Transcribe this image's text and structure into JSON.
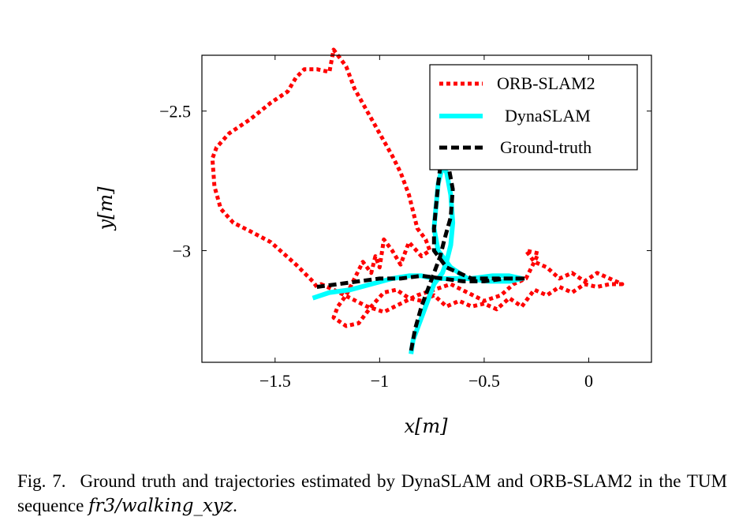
{
  "chart_data": {
    "type": "line",
    "xlabel": "x[m]",
    "ylabel": "y[m]",
    "xlim": [
      -1.85,
      0.3
    ],
    "ylim": [
      -3.4,
      -2.3
    ],
    "x_ticks": [
      {
        "value": -1.5,
        "label": "−1.5"
      },
      {
        "value": -1.0,
        "label": "−1"
      },
      {
        "value": -0.5,
        "label": "−0.5"
      },
      {
        "value": 0.0,
        "label": "0"
      }
    ],
    "y_ticks": [
      {
        "value": -2.5,
        "label": "−2.5"
      },
      {
        "value": -3.0,
        "label": "−3"
      }
    ],
    "grid": false,
    "legend_position": "top-right",
    "series": [
      {
        "name": "ORB-SLAM2",
        "color": "#ff0000",
        "style": "dotted",
        "x": [
          -1.3,
          -1.32,
          -1.4,
          -1.52,
          -1.62,
          -1.7,
          -1.76,
          -1.79,
          -1.8,
          -1.78,
          -1.72,
          -1.62,
          -1.52,
          -1.44,
          -1.4,
          -1.36,
          -1.3,
          -1.24,
          -1.22,
          -1.2,
          -1.16,
          -1.12,
          -1.06,
          -1.0,
          -0.94,
          -0.9,
          -0.86,
          -0.84,
          -0.82,
          -0.78,
          -0.76,
          -0.8,
          -0.86,
          -0.9,
          -0.94,
          -0.98,
          -1.0,
          -1.02,
          -1.04,
          -1.08,
          -1.12,
          -1.16,
          -1.2,
          -1.22,
          -1.16,
          -1.1,
          -1.04,
          -0.98,
          -0.92,
          -0.86,
          -0.8,
          -0.74,
          -0.68,
          -0.62,
          -0.56,
          -0.5,
          -0.44,
          -0.38,
          -0.32,
          -0.26,
          -0.2,
          -0.14,
          -0.08,
          -0.02,
          0.04,
          0.1,
          0.16,
          0.1,
          0.04,
          -0.02,
          -0.08,
          -0.14,
          -0.2,
          -0.26,
          -0.3,
          -0.24,
          -0.3,
          -0.36,
          -0.42,
          -0.5,
          -0.58,
          -0.66,
          -0.74,
          -0.82,
          -0.9,
          -0.98,
          -1.06,
          -1.14,
          -1.22,
          -1.28,
          -1.3
        ],
        "y": [
          -3.13,
          -3.11,
          -3.05,
          -2.97,
          -2.93,
          -2.9,
          -2.85,
          -2.77,
          -2.67,
          -2.63,
          -2.58,
          -2.53,
          -2.47,
          -2.43,
          -2.38,
          -2.35,
          -2.35,
          -2.36,
          -2.28,
          -2.3,
          -2.34,
          -2.42,
          -2.5,
          -2.58,
          -2.66,
          -2.72,
          -2.8,
          -2.86,
          -2.92,
          -2.96,
          -3.0,
          -3.02,
          -2.97,
          -3.05,
          -3.0,
          -2.96,
          -3.06,
          -3.02,
          -3.08,
          -3.04,
          -3.1,
          -3.16,
          -3.2,
          -3.24,
          -3.27,
          -3.26,
          -3.2,
          -3.15,
          -3.14,
          -3.17,
          -3.18,
          -3.16,
          -3.2,
          -3.18,
          -3.2,
          -3.19,
          -3.21,
          -3.17,
          -3.2,
          -3.14,
          -3.16,
          -3.13,
          -3.15,
          -3.12,
          -3.13,
          -3.12,
          -3.12,
          -3.1,
          -3.08,
          -3.11,
          -3.08,
          -3.1,
          -3.06,
          -3.04,
          -3.0,
          -3.01,
          -3.1,
          -3.12,
          -3.16,
          -3.18,
          -3.15,
          -3.12,
          -3.14,
          -3.16,
          -3.19,
          -3.22,
          -3.2,
          -3.17,
          -3.14,
          -3.12,
          -3.13
        ]
      },
      {
        "name": "DynaSLAM",
        "color": "#00ffff",
        "style": "solid",
        "x": [
          -1.32,
          -1.24,
          -1.14,
          -1.04,
          -0.94,
          -0.86,
          -0.8,
          -0.74,
          -0.66,
          -0.56,
          -0.46,
          -0.38,
          -0.32,
          -0.38,
          -0.48,
          -0.58,
          -0.66,
          -0.72,
          -0.74,
          -0.73,
          -0.72,
          -0.7,
          -0.68,
          -0.66,
          -0.65,
          -0.66,
          -0.68,
          -0.7,
          -0.72,
          -0.74,
          -0.76,
          -0.78,
          -0.8,
          -0.82,
          -0.84,
          -0.85
        ],
        "y": [
          -3.17,
          -3.15,
          -3.14,
          -3.12,
          -3.1,
          -3.09,
          -3.09,
          -3.1,
          -3.1,
          -3.1,
          -3.09,
          -3.09,
          -3.1,
          -3.11,
          -3.11,
          -3.1,
          -3.06,
          -3.0,
          -2.92,
          -2.84,
          -2.76,
          -2.7,
          -2.72,
          -2.8,
          -2.9,
          -2.98,
          -3.04,
          -3.08,
          -3.1,
          -3.12,
          -3.16,
          -3.2,
          -3.24,
          -3.28,
          -3.32,
          -3.37
        ]
      },
      {
        "name": "Ground-truth",
        "color": "#000000",
        "style": "dashed",
        "x": [
          -1.3,
          -1.2,
          -1.1,
          -1.0,
          -0.9,
          -0.8,
          -0.7,
          -0.6,
          -0.5,
          -0.4,
          -0.3,
          -0.42,
          -0.56,
          -0.68,
          -0.74,
          -0.74,
          -0.73,
          -0.72,
          -0.71,
          -0.7,
          -0.67,
          -0.65,
          -0.66,
          -0.69,
          -0.71,
          -0.74,
          -0.77,
          -0.8,
          -0.83,
          -0.85
        ],
        "y": [
          -3.13,
          -3.12,
          -3.11,
          -3.1,
          -3.1,
          -3.09,
          -3.1,
          -3.11,
          -3.11,
          -3.1,
          -3.1,
          -3.1,
          -3.1,
          -3.06,
          -3.0,
          -2.92,
          -2.84,
          -2.76,
          -2.7,
          -2.66,
          -2.7,
          -2.78,
          -2.88,
          -2.96,
          -3.02,
          -3.08,
          -3.14,
          -3.2,
          -3.28,
          -3.36
        ]
      }
    ]
  },
  "caption": {
    "label": "Fig. 7.",
    "text": "Ground truth and trajectories estimated by DynaSLAM and ORB-SLAM2 in the TUM sequence",
    "sequence": "fr3/walking_xyz",
    "end": "."
  }
}
